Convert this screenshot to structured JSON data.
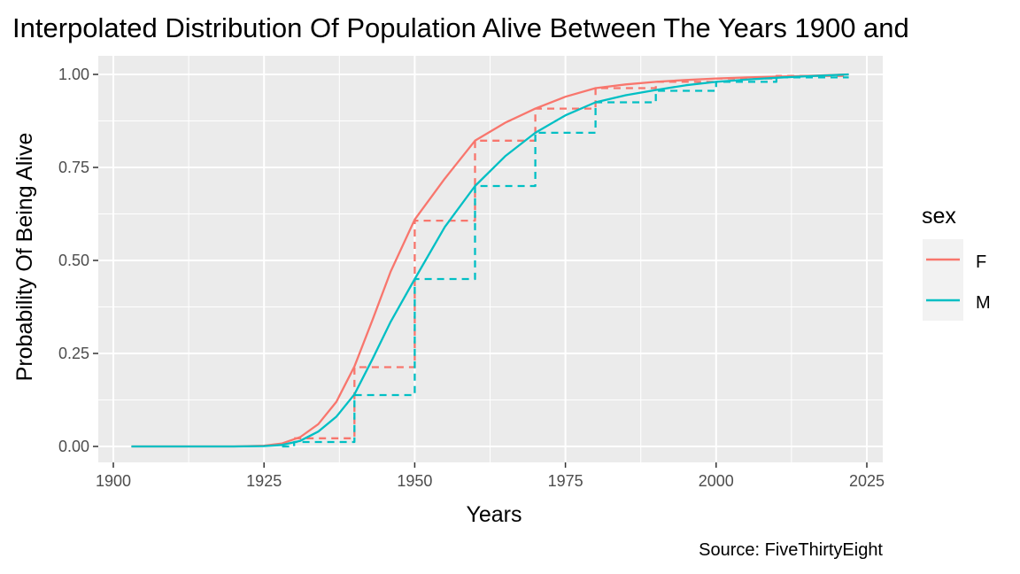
{
  "chart_data": {
    "type": "line",
    "title": "Interpolated Distribution Of Population Alive Between The Years 1900 and",
    "xlabel": "Years",
    "ylabel": "Probability Of Being Alive",
    "caption": "Source: FiveThirtyEight",
    "xlim": [
      1900,
      2025
    ],
    "ylim": [
      0,
      1
    ],
    "x_ticks": [
      1900,
      1925,
      1950,
      1975,
      2000,
      2025
    ],
    "x_tick_labels": [
      "1900",
      "1925",
      "1950",
      "1975",
      "2000",
      "2025"
    ],
    "y_ticks": [
      0,
      0.25,
      0.5,
      0.75,
      1
    ],
    "y_tick_labels": [
      "0.00",
      "0.25",
      "0.50",
      "0.75",
      "1.00"
    ],
    "grid": true,
    "legend": {
      "title": "sex",
      "position": "right",
      "entries": [
        "F",
        "M"
      ]
    },
    "colors": {
      "F": "#F8766D",
      "M": "#00BFC4",
      "panel": "#EBEBEB",
      "grid": "#FFFFFF"
    },
    "series": [
      {
        "name": "F",
        "style": "solid",
        "x": [
          1903,
          1910,
          1920,
          1925,
          1928,
          1931,
          1934,
          1937,
          1940,
          1943,
          1946,
          1950,
          1955,
          1960,
          1965,
          1970,
          1975,
          1980,
          1985,
          1990,
          1995,
          2000,
          2005,
          2010,
          2015,
          2022
        ],
        "y": [
          0.0,
          0.0,
          0.0,
          0.002,
          0.008,
          0.025,
          0.06,
          0.12,
          0.215,
          0.34,
          0.47,
          0.61,
          0.72,
          0.822,
          0.87,
          0.908,
          0.94,
          0.963,
          0.973,
          0.98,
          0.985,
          0.989,
          0.992,
          0.994,
          0.996,
          1.0
        ]
      },
      {
        "name": "F",
        "style": "dashed",
        "x": [
          1930,
          1940,
          1940,
          1950,
          1950,
          1960,
          1960,
          1970,
          1970,
          1980,
          1980,
          1990,
          1990,
          2000,
          2000,
          2010,
          2010,
          2022
        ],
        "y": [
          0.022,
          0.022,
          0.213,
          0.213,
          0.607,
          0.607,
          0.822,
          0.822,
          0.908,
          0.908,
          0.963,
          0.963,
          0.98,
          0.98,
          0.989,
          0.989,
          0.996,
          0.996
        ]
      },
      {
        "name": "M",
        "style": "solid",
        "x": [
          1903,
          1910,
          1920,
          1925,
          1928,
          1931,
          1934,
          1937,
          1940,
          1943,
          1946,
          1950,
          1955,
          1960,
          1965,
          1970,
          1975,
          1980,
          1985,
          1990,
          1995,
          2000,
          2005,
          2010,
          2015,
          2022
        ],
        "y": [
          0.0,
          0.0,
          0.0,
          0.001,
          0.004,
          0.015,
          0.04,
          0.08,
          0.14,
          0.235,
          0.335,
          0.45,
          0.59,
          0.7,
          0.78,
          0.843,
          0.89,
          0.925,
          0.944,
          0.958,
          0.971,
          0.98,
          0.986,
          0.991,
          0.995,
          1.0
        ]
      },
      {
        "name": "M",
        "style": "dashed",
        "x": [
          1928,
          1930,
          1930,
          1940,
          1940,
          1950,
          1950,
          1960,
          1960,
          1970,
          1970,
          1980,
          1980,
          1990,
          1990,
          2000,
          2000,
          2010,
          2010,
          2022
        ],
        "y": [
          0.0,
          0.0,
          0.012,
          0.012,
          0.138,
          0.138,
          0.45,
          0.45,
          0.7,
          0.7,
          0.843,
          0.843,
          0.925,
          0.925,
          0.956,
          0.956,
          0.98,
          0.98,
          0.992,
          0.992
        ]
      }
    ]
  }
}
